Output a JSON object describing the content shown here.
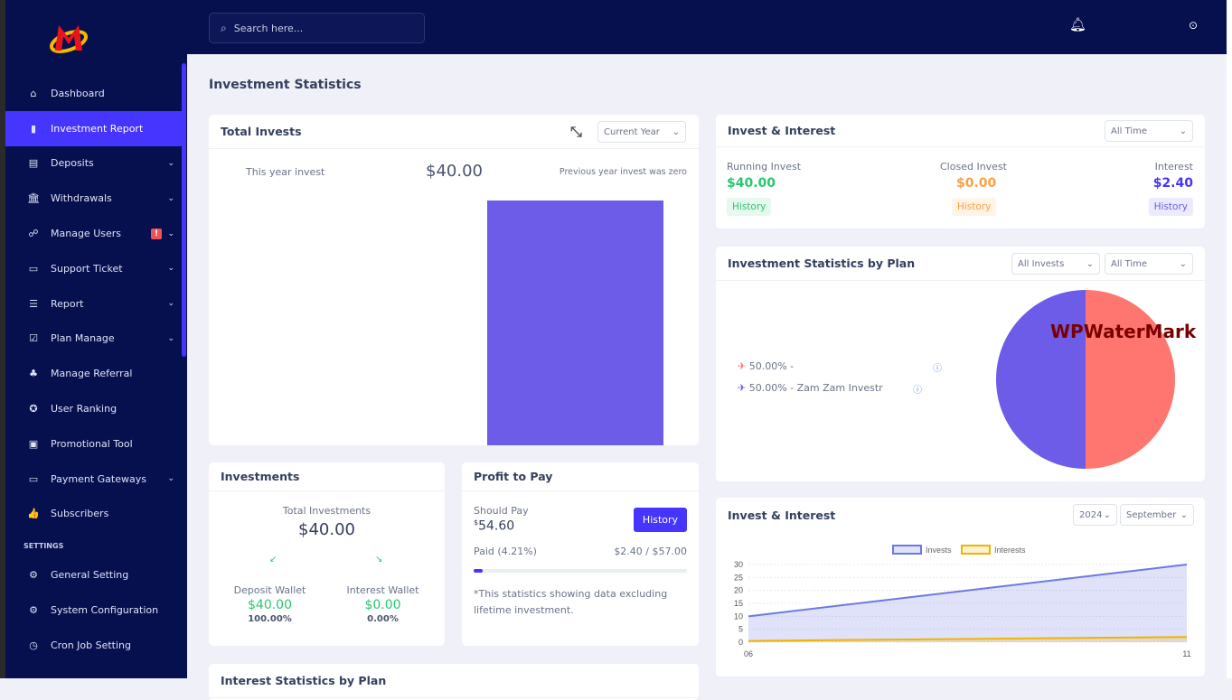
{
  "sidebar": {
    "items": [
      {
        "label": "Dashboard",
        "icon": "home-icon",
        "glyph": "⌂"
      },
      {
        "label": "Investment Report",
        "icon": "bar-chart-icon",
        "glyph": "▮"
      },
      {
        "label": "Deposits",
        "icon": "invoice-icon",
        "glyph": "▤"
      },
      {
        "label": "Withdrawals",
        "icon": "bank-icon",
        "glyph": "🏛"
      },
      {
        "label": "Manage Users",
        "icon": "users-icon",
        "glyph": "☍"
      },
      {
        "label": "Support Ticket",
        "icon": "ticket-icon",
        "glyph": "▭"
      },
      {
        "label": "Report",
        "icon": "list-icon",
        "glyph": "☰"
      },
      {
        "label": "Plan Manage",
        "icon": "clipboard-check-icon",
        "glyph": "☑"
      },
      {
        "label": "Manage Referral",
        "icon": "tree-icon",
        "glyph": "♣"
      },
      {
        "label": "User Ranking",
        "icon": "medal-icon",
        "glyph": "✪"
      },
      {
        "label": "Promotional Tool",
        "icon": "ad-icon",
        "glyph": "▣"
      },
      {
        "label": "Payment Gateways",
        "icon": "credit-card-icon",
        "glyph": "▭"
      },
      {
        "label": "Subscribers",
        "icon": "thumbs-up-icon",
        "glyph": "👍"
      }
    ],
    "settings_heading": "SETTINGS",
    "settings": [
      {
        "label": "General Setting",
        "icon": "gear-icon",
        "glyph": "⚙"
      },
      {
        "label": "System Configuration",
        "icon": "cog-icon",
        "glyph": "⚙"
      },
      {
        "label": "Cron Job Setting",
        "icon": "clock-icon",
        "glyph": "◷"
      }
    ],
    "badge": "!"
  },
  "topbar": {
    "search_placeholder": "Search here..."
  },
  "page_title": "Investment Statistics",
  "total_invests": {
    "title": "Total Invests",
    "filter": "Current Year",
    "label": "This year invest",
    "amount": "$40.00",
    "note": "Previous year invest was zero",
    "bar_color": "#6c5ce7"
  },
  "invest_interest": {
    "title": "Invest & Interest",
    "filter": "All Time",
    "running_label": "Running Invest",
    "running": "$40.00",
    "closed_label": "Closed Invest",
    "closed": "$0.00",
    "interest_label": "Interest",
    "interest": "$2.40",
    "history": "History"
  },
  "plan_stats": {
    "title": "Investment Statistics by Plan",
    "filter1": "All Invests",
    "filter2": "All Time",
    "legend": [
      {
        "text": "50.00% -",
        "color": "#ff7670"
      },
      {
        "text": "50.00% - Zam Zam Investr",
        "color": "#6c5ce7"
      }
    ],
    "watermark": "WPWaterMark"
  },
  "investments": {
    "title": "Investments",
    "total_label": "Total Investments",
    "total": "$40.00",
    "deposit_label": "Deposit Wallet",
    "deposit": "$40.00",
    "deposit_pct": "100.00%",
    "interest_label": "Interest Wallet",
    "interest": "$0.00",
    "interest_pct": "0.00%"
  },
  "profit": {
    "title": "Profit to Pay",
    "should_label": "Should Pay",
    "currency": "$",
    "should": "54.60",
    "history": "History",
    "paid_label": "Paid (4.21%)",
    "paid_ratio": "$2.40 / $57.00",
    "progress_pct": 4.21,
    "note": "*This statistics showing data excluding lifetime investment."
  },
  "interest_stats": {
    "title": "Interest Statistics by Plan"
  },
  "chart_data": [
    {
      "type": "pie",
      "title": "Investment Statistics by Plan",
      "labels": [
        "",
        "Zam Zam Investr"
      ],
      "values": [
        50,
        50
      ],
      "colors": [
        "#ff7670",
        "#6c5ce7"
      ]
    },
    {
      "type": "area",
      "title": "Invest & Interest",
      "year": "2024",
      "month": "September",
      "x": [
        "06",
        "11"
      ],
      "ylim": [
        0,
        30
      ],
      "yticks": [
        0,
        5,
        10,
        15,
        20,
        25,
        30
      ],
      "series": [
        {
          "name": "Invests",
          "values": [
            10,
            30
          ],
          "color": "#6c7ae0"
        },
        {
          "name": "Interests",
          "values": [
            0.5,
            2
          ],
          "color": "#f0b400"
        }
      ]
    }
  ]
}
